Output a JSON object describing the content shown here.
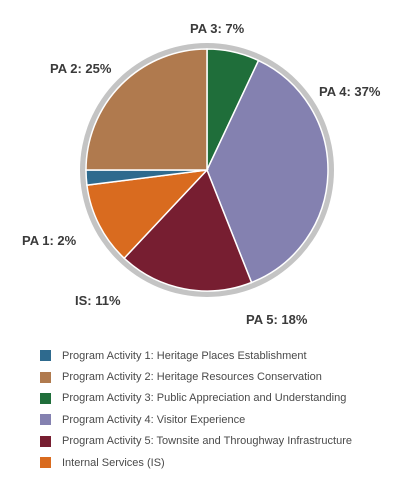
{
  "chart_data": {
    "type": "pie",
    "slices": [
      {
        "key": "PA 1",
        "label": "PA 1: 2%",
        "value": 2,
        "color": "#2e6a8e",
        "legend": "Program Activity 1: Heritage Places Establishment"
      },
      {
        "key": "PA 2",
        "label": "PA 2: 25%",
        "value": 25,
        "color": "#b07a4e",
        "legend": "Program Activity 2: Heritage Resources Conservation"
      },
      {
        "key": "PA 3",
        "label": "PA 3: 7%",
        "value": 7,
        "color": "#1f6e3a",
        "legend": "Program Activity 3: Public Appreciation and Understanding"
      },
      {
        "key": "PA 4",
        "label": "PA 4: 37%",
        "value": 37,
        "color": "#8481b0",
        "legend": "Program Activity 4: Visitor Experience"
      },
      {
        "key": "PA 5",
        "label": "PA 5: 18%",
        "value": 18,
        "color": "#771e31",
        "legend": "Program Activity 5: Townsite and Throughway Infrastructure"
      },
      {
        "key": "IS",
        "label": "IS: 11%",
        "value": 11,
        "color": "#d96b1f",
        "legend": "Internal Services (IS)"
      }
    ],
    "legend_placement": "bottom",
    "ring_color": "#c4c4c4"
  }
}
